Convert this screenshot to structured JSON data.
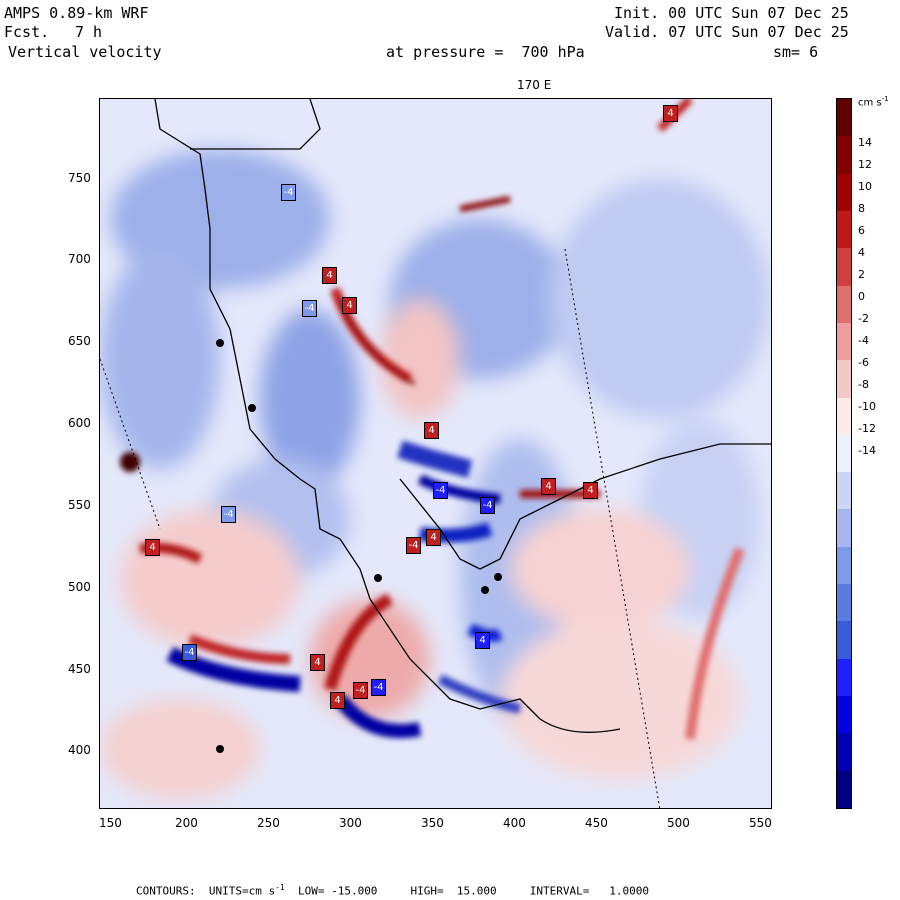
{
  "header": {
    "model": "AMPS 0.89-km WRF",
    "fcst_label": "Fcst.",
    "fcst_value": "7 h",
    "field": "Vertical velocity",
    "init": "Init. 00 UTC Sun 07 Dec 25",
    "valid": "Valid. 07 UTC Sun 07 Dec 25",
    "pressure": "at pressure =  700 hPa",
    "smoothing": "sm= 6",
    "meridian_label": "170 E"
  },
  "axes": {
    "x_ticks": [
      "150",
      "200",
      "250",
      "300",
      "350",
      "400",
      "450",
      "500",
      "550"
    ],
    "y_ticks": [
      "750",
      "700",
      "650",
      "600",
      "550",
      "500",
      "450",
      "400"
    ]
  },
  "colorbar": {
    "units": "cm s",
    "units_exp": "-1",
    "labels": [
      "14",
      "12",
      "10",
      "8",
      "6",
      "4",
      "2",
      "0",
      "-2",
      "-4",
      "-6",
      "-8",
      "-10",
      "-12",
      "-14"
    ],
    "colors": [
      "#000080",
      "#0000b0",
      "#0000e0",
      "#2020ff",
      "#3a5cd8",
      "#5a7ce0",
      "#7f9ae8",
      "#a7b6ef",
      "#cdd5f5",
      "#eef0fb",
      "#fbebeb",
      "#f5c8c8",
      "#ee9e9e",
      "#e07070",
      "#d04040",
      "#c01818",
      "#a00000",
      "#800000",
      "#600000"
    ]
  },
  "map": {
    "extreme_labels": [
      "4",
      "-4",
      "4",
      "4",
      "-4",
      "4",
      "-4",
      "-4",
      "4",
      "4",
      "-4",
      "4",
      "-4",
      "-4",
      "4",
      "4",
      "-4",
      "4",
      "4",
      "-4"
    ]
  },
  "footer": {
    "contours": "CONTOURS:  UNITS=cm s",
    "units_exp": "-1",
    "rest": "  LOW= -15.000     HIGH=  15.000     INTERVAL=   1.0000"
  }
}
